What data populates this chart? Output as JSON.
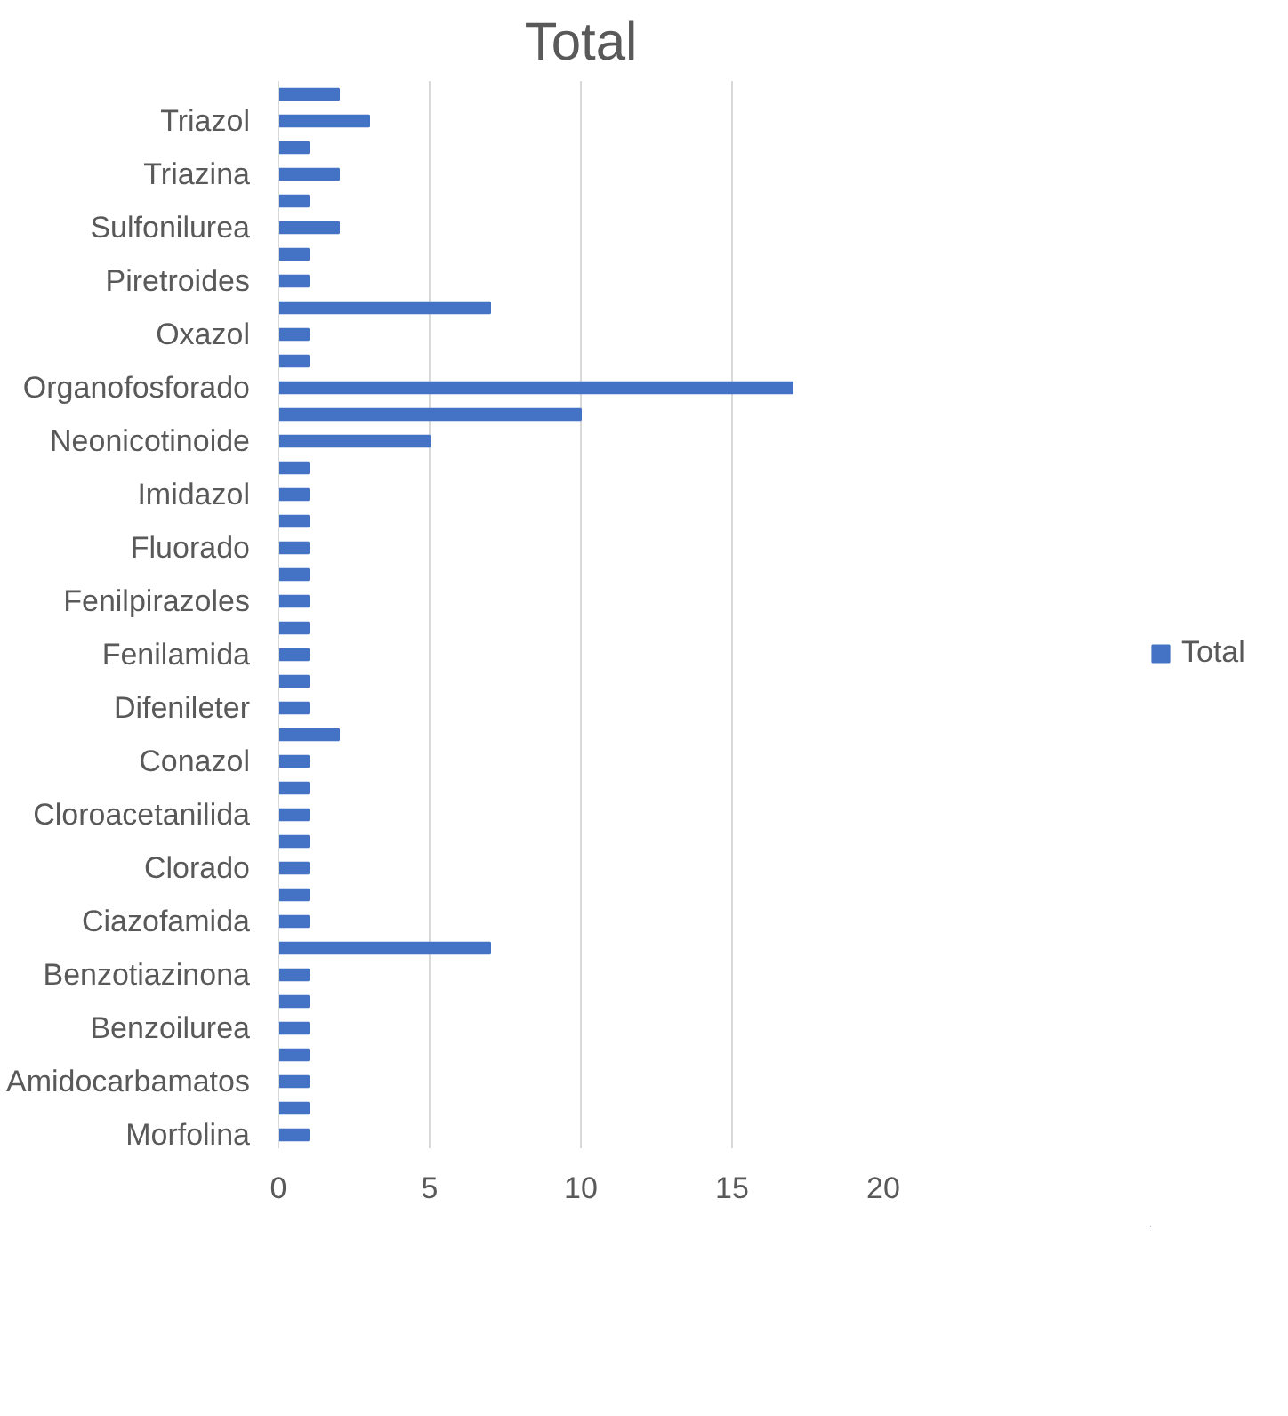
{
  "chart_data": {
    "type": "bar",
    "orientation": "horizontal",
    "title": "Total",
    "categories": [
      null,
      "Triazol",
      null,
      "Triazina",
      null,
      "Sulfonilurea",
      null,
      "Piretroides",
      null,
      "Oxazol",
      null,
      "Organofosforado",
      null,
      "Neonicotinoide",
      null,
      "Imidazol",
      null,
      "Fluorado",
      null,
      "Fenilpirazoles",
      null,
      "Fenilamida",
      null,
      "Difenileter",
      null,
      "Conazol",
      null,
      "Cloroacetanilida",
      null,
      "Clorado",
      null,
      "Ciazofamida",
      null,
      "Benzotiazinona",
      null,
      "Benzoilurea",
      null,
      "Amidocarbamatos",
      null,
      "Morfolina"
    ],
    "series": [
      {
        "name": "Total",
        "color": "#4472c4",
        "values": [
          2,
          3,
          1,
          2,
          1,
          2,
          1,
          1,
          7,
          1,
          1,
          17,
          10,
          5,
          1,
          1,
          1,
          1,
          1,
          1,
          1,
          1,
          1,
          1,
          2,
          1,
          1,
          1,
          1,
          1,
          1,
          1,
          7,
          1,
          1,
          1,
          1,
          1,
          1,
          1
        ]
      }
    ],
    "xlim": [
      0,
      20
    ],
    "xticks": [
      0,
      5,
      10,
      15,
      20
    ],
    "grid": "x",
    "legend": "right"
  }
}
